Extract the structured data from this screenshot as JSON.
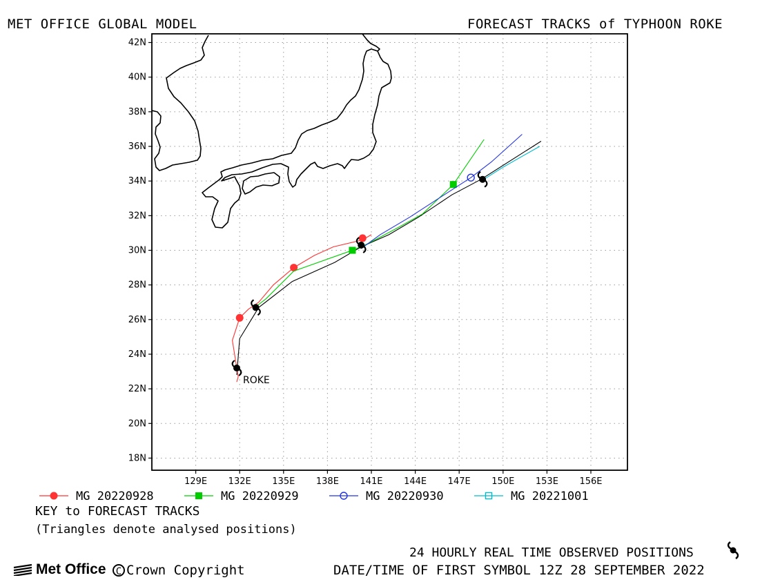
{
  "header": {
    "left_title": "MET OFFICE GLOBAL MODEL",
    "right_title": "FORECAST TRACKS of TYPHOON ROKE"
  },
  "map": {
    "lon_ticks": [
      "129E",
      "132E",
      "135E",
      "138E",
      "141E",
      "144E",
      "147E",
      "150E",
      "153E",
      "156E"
    ],
    "lat_ticks": [
      "42N",
      "40N",
      "38N",
      "36N",
      "34N",
      "32N",
      "30N",
      "28N",
      "26N",
      "24N",
      "22N",
      "20N",
      "18N"
    ],
    "storm_label": "ROKE",
    "colors": {
      "MG 20220928": "#ff3333",
      "MG 20220929": "#00cc00",
      "MG 20220930": "#2233dd",
      "MG 20221001": "#00bbcc",
      "observed": "#000000"
    }
  },
  "chart_data": {
    "type": "map",
    "xlim": [
      126,
      158.5
    ],
    "ylim": [
      17.3,
      42.5
    ],
    "tracks": [
      {
        "name": "MG 20220928",
        "marker": "filled-circle",
        "lon": [
          131.8,
          131.9,
          131.5,
          132.0,
          132.6,
          133.3,
          134.3,
          135.7,
          137.1,
          138.4,
          140.4,
          141.0
        ],
        "lat": [
          22.4,
          22.7,
          24.8,
          26.1,
          26.6,
          27.0,
          28.0,
          29.0,
          29.7,
          30.2,
          30.6,
          30.9
        ],
        "symbols_lon": [
          132.0,
          135.7,
          140.4
        ],
        "symbols_lat": [
          26.1,
          29.0,
          30.7
        ]
      },
      {
        "name": "MG 20220929",
        "marker": "filled-square",
        "lon": [
          133.2,
          133.8,
          135.7,
          139.7,
          140.8,
          142.8,
          144.5,
          146.6,
          148.7
        ],
        "lat": [
          26.8,
          27.2,
          28.8,
          30.0,
          30.4,
          31.3,
          32.1,
          33.8,
          36.4
        ],
        "symbols_lon": [
          139.7,
          146.6
        ],
        "symbols_lat": [
          30.0,
          33.8
        ]
      },
      {
        "name": "MG 20220930",
        "marker": "open-circle",
        "lon": [
          140.3,
          141.6,
          143.6,
          145.6,
          147.8,
          149.2,
          151.3
        ],
        "lat": [
          30.1,
          30.9,
          31.9,
          33.0,
          34.2,
          35.1,
          36.7
        ],
        "symbols_lon": [
          147.8
        ],
        "symbols_lat": [
          34.2
        ]
      },
      {
        "name": "MG 20221001",
        "marker": "open-square",
        "lon": [
          148.5,
          150.0,
          152.5
        ],
        "lat": [
          34.0,
          34.8,
          36.0
        ],
        "symbols_lon": [],
        "symbols_lat": []
      },
      {
        "name": "observed",
        "lon": [
          131.8,
          132.0,
          133.3,
          135.6,
          138.5,
          140.3,
          142.2,
          144.2,
          146.5,
          148.5,
          152.6
        ],
        "lat": [
          22.8,
          24.9,
          26.7,
          28.2,
          29.3,
          30.2,
          30.9,
          31.9,
          33.2,
          34.1,
          36.3
        ]
      }
    ],
    "observed_positions": {
      "lon": [
        131.8,
        133.1,
        140.3,
        148.6
      ],
      "lat": [
        23.2,
        26.7,
        30.3,
        34.1
      ]
    }
  },
  "legend": {
    "items": [
      {
        "label": "MG 20220928"
      },
      {
        "label": "MG 20220929"
      },
      {
        "label": "MG 20220930"
      },
      {
        "label": "MG 20221001"
      }
    ],
    "key_title": "KEY to FORECAST TRACKS",
    "key_note": "(Triangles denote analysed positions)"
  },
  "footer": {
    "logo_text": "Met Office",
    "copyright": "Crown Copyright",
    "observed_note": "24 HOURLY REAL TIME OBSERVED POSITIONS",
    "datetime_note": "DATE/TIME OF FIRST SYMBOL 12Z 28 SEPTEMBER 2022"
  }
}
